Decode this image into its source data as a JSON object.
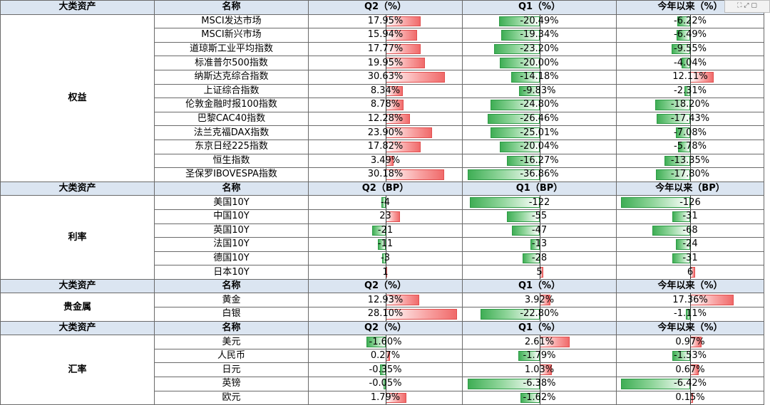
{
  "sections": [
    {
      "category": "权益",
      "header": [
        "大类资产",
        "名称",
        "Q2（%）",
        "Q1（%）",
        "今年以来（%）"
      ],
      "scale": 37,
      "rows": [
        {
          "name": "MSCI发达市场",
          "q2": 17.95,
          "q1": -20.49,
          "ytd": -6.22,
          "q2_text": "17.95%",
          "q1_text": "-20.49%",
          "ytd_text": "-6.22%"
        },
        {
          "name": "MSCI新兴市场",
          "q2": 15.94,
          "q1": -19.34,
          "ytd": -6.49,
          "q2_text": "15.94%",
          "q1_text": "-19.34%",
          "ytd_text": "-6.49%"
        },
        {
          "name": "道琼斯工业平均指数",
          "q2": 17.77,
          "q1": -23.2,
          "ytd": -9.55,
          "q2_text": "17.77%",
          "q1_text": "-23.20%",
          "ytd_text": "-9.55%"
        },
        {
          "name": "标准普尔500指数",
          "q2": 19.95,
          "q1": -20.0,
          "ytd": -4.04,
          "q2_text": "19.95%",
          "q1_text": "-20.00%",
          "ytd_text": "-4.04%"
        },
        {
          "name": "纳斯达克综合指数",
          "q2": 30.63,
          "q1": -14.18,
          "ytd": 12.11,
          "q2_text": "30.63%",
          "q1_text": "-14.18%",
          "ytd_text": "12.11%"
        },
        {
          "name": "上证综合指数",
          "q2": 8.34,
          "q1": -9.83,
          "ytd": -2.31,
          "q2_text": "8.34%",
          "q1_text": "-9.83%",
          "ytd_text": "-2.31%"
        },
        {
          "name": "伦敦金融时报100指数",
          "q2": 8.78,
          "q1": -24.8,
          "ytd": -18.2,
          "q2_text": "8.78%",
          "q1_text": "-24.80%",
          "ytd_text": "-18.20%"
        },
        {
          "name": "巴黎CAC40指数",
          "q2": 12.28,
          "q1": -26.46,
          "ytd": -17.43,
          "q2_text": "12.28%",
          "q1_text": "-26.46%",
          "ytd_text": "-17.43%"
        },
        {
          "name": "法兰克福DAX指数",
          "q2": 23.9,
          "q1": -25.01,
          "ytd": -7.08,
          "q2_text": "23.90%",
          "q1_text": "-25.01%",
          "ytd_text": "-7.08%"
        },
        {
          "name": "东京日经225指数",
          "q2": 17.82,
          "q1": -20.04,
          "ytd": -5.78,
          "q2_text": "17.82%",
          "q1_text": "-20.04%",
          "ytd_text": "-5.78%"
        },
        {
          "name": "恒生指数",
          "q2": 3.49,
          "q1": -16.27,
          "ytd": -13.35,
          "q2_text": "3.49%",
          "q1_text": "-16.27%",
          "ytd_text": "-13.35%"
        },
        {
          "name": "圣保罗IBOVESPA指数",
          "q2": 30.18,
          "q1": -36.86,
          "ytd": -17.8,
          "q2_text": "30.18%",
          "q1_text": "-36.86%",
          "ytd_text": "-17.80%"
        }
      ]
    },
    {
      "category": "利率",
      "header": [
        "大类资产",
        "名称",
        "Q2（BP）",
        "Q1（BP）",
        "今年以来（BP）"
      ],
      "scale": 126,
      "rows": [
        {
          "name": "美国10Y",
          "q2": -4,
          "q1": -122,
          "ytd": -126,
          "q2_text": "-4",
          "q1_text": "-122",
          "ytd_text": "-126"
        },
        {
          "name": "中国10Y",
          "q2": 23,
          "q1": -55,
          "ytd": -31,
          "q2_text": "23",
          "q1_text": "-55",
          "ytd_text": "-31"
        },
        {
          "name": "英国10Y",
          "q2": -21,
          "q1": -47,
          "ytd": -68,
          "q2_text": "-21",
          "q1_text": "-47",
          "ytd_text": "-68"
        },
        {
          "name": "法国10Y",
          "q2": -11,
          "q1": -13,
          "ytd": -24,
          "q2_text": "-11",
          "q1_text": "-13",
          "ytd_text": "-24"
        },
        {
          "name": "德国10Y",
          "q2": -3,
          "q1": -28,
          "ytd": -31,
          "q2_text": "-3",
          "q1_text": "-28",
          "ytd_text": "-31"
        },
        {
          "name": "日本10Y",
          "q2": 1,
          "q1": 5,
          "ytd": 6,
          "q2_text": "1",
          "q1_text": "5",
          "ytd_text": "6"
        }
      ]
    },
    {
      "category": "贵金属",
      "header": [
        "大类资产",
        "名称",
        "Q2（%）",
        "Q1（%）",
        "今年以来（%）"
      ],
      "scale": 28.1,
      "rows": [
        {
          "name": "黄金",
          "q2": 12.93,
          "q1": 3.92,
          "ytd": 17.36,
          "q2_text": "12.93%",
          "q1_text": "3.92%",
          "ytd_text": "17.36%"
        },
        {
          "name": "白银",
          "q2": 28.1,
          "q1": -22.8,
          "ytd": -1.11,
          "q2_text": "28.10%",
          "q1_text": "-22.80%",
          "ytd_text": "-1.11%"
        }
      ]
    },
    {
      "category": "汇率",
      "header": [
        "大类资产",
        "名称",
        "Q2（%）",
        "Q1（%）",
        "今年以来（%）"
      ],
      "scale": 6.42,
      "rows": [
        {
          "name": "美元",
          "q2": -1.6,
          "q1": 2.61,
          "ytd": 0.97,
          "q2_text": "-1.60%",
          "q1_text": "2.61%",
          "ytd_text": "0.97%"
        },
        {
          "name": "人民币",
          "q2": 0.27,
          "q1": -1.79,
          "ytd": -1.53,
          "q2_text": "0.27%",
          "q1_text": "-1.79%",
          "ytd_text": "-1.53%"
        },
        {
          "name": "日元",
          "q2": -0.35,
          "q1": 1.03,
          "ytd": 0.67,
          "q2_text": "-0.35%",
          "q1_text": "1.03%",
          "ytd_text": "0.67%"
        },
        {
          "name": "英镑",
          "q2": -0.05,
          "q1": -6.38,
          "ytd": -6.42,
          "q2_text": "-0.05%",
          "q1_text": "-6.38%",
          "ytd_text": "-6.42%"
        },
        {
          "name": "欧元",
          "q2": 1.79,
          "q1": -1.62,
          "ytd": 0.15,
          "q2_text": "1.79%",
          "q1_text": "-1.62%",
          "ytd_text": "0.15%"
        }
      ]
    }
  ],
  "colors": {
    "positive": "#f06a6a",
    "negative": "#3fae55",
    "header_bg": "#dbe5f1"
  }
}
